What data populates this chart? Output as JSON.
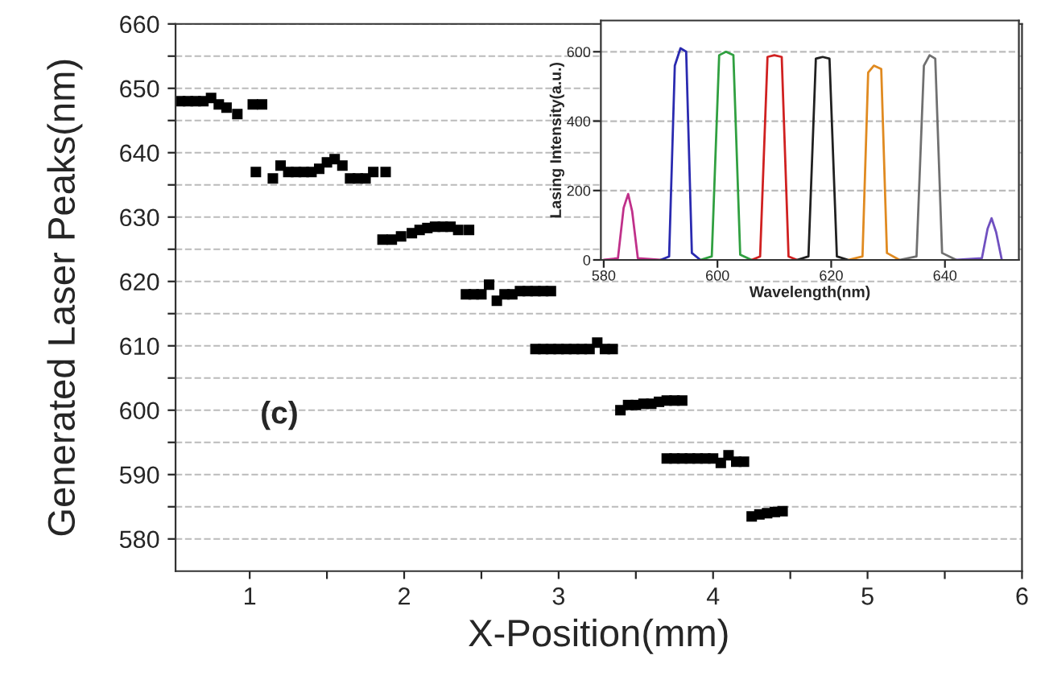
{
  "chart_data": [
    {
      "type": "scatter",
      "xlabel": "X-Position(mm)",
      "ylabel": "Generated Laser Peaks(nm)",
      "annotations": [
        "(c)"
      ],
      "marker": "square",
      "grid": "y",
      "xlim": [
        0.52,
        6
      ],
      "ylim": [
        575,
        660
      ],
      "xticks": [
        {
          "value": 1,
          "label": "1"
        },
        {
          "value": 1.5,
          "label": null
        },
        {
          "value": 2,
          "label": "2"
        },
        {
          "value": 2.5,
          "label": null
        },
        {
          "value": 3,
          "label": "3"
        },
        {
          "value": 3.5,
          "label": null
        },
        {
          "value": 4,
          "label": "4"
        },
        {
          "value": 4.5,
          "label": null
        },
        {
          "value": 5,
          "label": "5"
        },
        {
          "value": 5.5,
          "label": null
        },
        {
          "value": 6,
          "label": "6"
        }
      ],
      "yticks": [
        580,
        {
          "value": 585,
          "label": null
        },
        590,
        {
          "value": 595,
          "label": null
        },
        600,
        {
          "value": 605,
          "label": null
        },
        610,
        {
          "value": 615,
          "label": null
        },
        620,
        {
          "value": 625,
          "label": null
        },
        630,
        {
          "value": 635,
          "label": null
        },
        640,
        {
          "value": 645,
          "label": null
        },
        650,
        {
          "value": 655,
          "label": null
        },
        660
      ],
      "series": [
        {
          "color": "#000000",
          "x": [
            0.55,
            0.6,
            0.65,
            0.7,
            0.75,
            0.8,
            0.85,
            0.92,
            1.02,
            1.08,
            1.04,
            1.15,
            1.2,
            1.25,
            1.3,
            1.35,
            1.4,
            1.45,
            1.5,
            1.55,
            1.6,
            1.65,
            1.7,
            1.75,
            1.8,
            1.88,
            1.86,
            1.92,
            1.98,
            2.05,
            2.1,
            2.15,
            2.2,
            2.25,
            2.3,
            2.35,
            2.42,
            2.4,
            2.45,
            2.5,
            2.55,
            2.6,
            2.65,
            2.7,
            2.75,
            2.8,
            2.85,
            2.9,
            2.95,
            2.85,
            2.9,
            2.95,
            3.0,
            3.05,
            3.1,
            3.15,
            3.2,
            3.25,
            3.3,
            3.35,
            3.4,
            3.45,
            3.5,
            3.55,
            3.6,
            3.65,
            3.7,
            3.75,
            3.8,
            3.7,
            3.75,
            3.8,
            3.85,
            3.9,
            3.95,
            4.0,
            4.05,
            4.1,
            4.15,
            4.2,
            4.25,
            4.3,
            4.35,
            4.4,
            4.45
          ],
          "values": [
            648,
            648,
            648,
            648,
            648.5,
            647.5,
            647,
            646,
            647.5,
            647.5,
            637,
            636,
            638,
            637,
            637,
            637,
            637,
            637.5,
            638.5,
            639,
            638,
            636,
            636,
            636,
            637,
            637,
            626.5,
            626.5,
            627,
            627.5,
            628,
            628.3,
            628.5,
            628.5,
            628.5,
            628,
            628,
            618,
            618,
            618,
            619.5,
            617,
            618,
            618,
            618.5,
            618.5,
            618.5,
            618.5,
            618.5,
            609.5,
            609.5,
            609.5,
            609.5,
            609.5,
            609.5,
            609.5,
            609.5,
            610.5,
            609.5,
            609.5,
            600,
            600.8,
            600.8,
            601,
            601,
            601.3,
            601.5,
            601.5,
            601.5,
            592.5,
            592.5,
            592.5,
            592.5,
            592.5,
            592.5,
            592.5,
            591.8,
            593,
            592,
            592,
            583.5,
            583.8,
            584,
            584.2,
            584.3
          ]
        }
      ]
    },
    {
      "type": "line",
      "xlabel": "Wavelength(nm)",
      "ylabel": "Lasing Intensity(a.u.)",
      "grid": "y",
      "xlim": [
        579.5,
        653
      ],
      "ylim": [
        0,
        690
      ],
      "xticks": [
        580,
        600,
        620,
        640
      ],
      "yticks": [
        0,
        200,
        400,
        600
      ],
      "series": [
        {
          "color": "#c0308a",
          "x": [
            580,
            582.5,
            583.5,
            584.3,
            585,
            586,
            590
          ],
          "values": [
            0,
            5,
            150,
            190,
            140,
            5,
            0
          ]
        },
        {
          "color": "#2a2ab0",
          "x": [
            590,
            591.5,
            592.5,
            593.5,
            594.5,
            595.5,
            597
          ],
          "values": [
            0,
            10,
            560,
            610,
            600,
            20,
            0
          ]
        },
        {
          "color": "#30a040",
          "x": [
            597,
            599,
            600.3,
            601.5,
            602.8,
            604,
            606
          ],
          "values": [
            0,
            10,
            590,
            600,
            590,
            15,
            0
          ]
        },
        {
          "color": "#d02020",
          "x": [
            606,
            607.5,
            608.8,
            610,
            611.3,
            612.5,
            614
          ],
          "values": [
            0,
            10,
            585,
            590,
            585,
            10,
            0
          ]
        },
        {
          "color": "#202020",
          "x": [
            614,
            616,
            617.3,
            618.5,
            619.7,
            621,
            623
          ],
          "values": [
            0,
            10,
            580,
            585,
            580,
            10,
            0
          ]
        },
        {
          "color": "#e08a20",
          "x": [
            623,
            625.5,
            626.5,
            627.5,
            628.8,
            629.8,
            632
          ],
          "values": [
            0,
            10,
            540,
            560,
            550,
            20,
            0
          ]
        },
        {
          "color": "#707070",
          "x": [
            632,
            635,
            636.3,
            637.3,
            638.3,
            639.5,
            642
          ],
          "values": [
            0,
            10,
            560,
            590,
            580,
            20,
            0
          ]
        },
        {
          "color": "#7050c0",
          "x": [
            642,
            646.5,
            647.5,
            648.2,
            649,
            650
          ],
          "values": [
            0,
            5,
            90,
            120,
            80,
            0
          ]
        }
      ]
    }
  ]
}
